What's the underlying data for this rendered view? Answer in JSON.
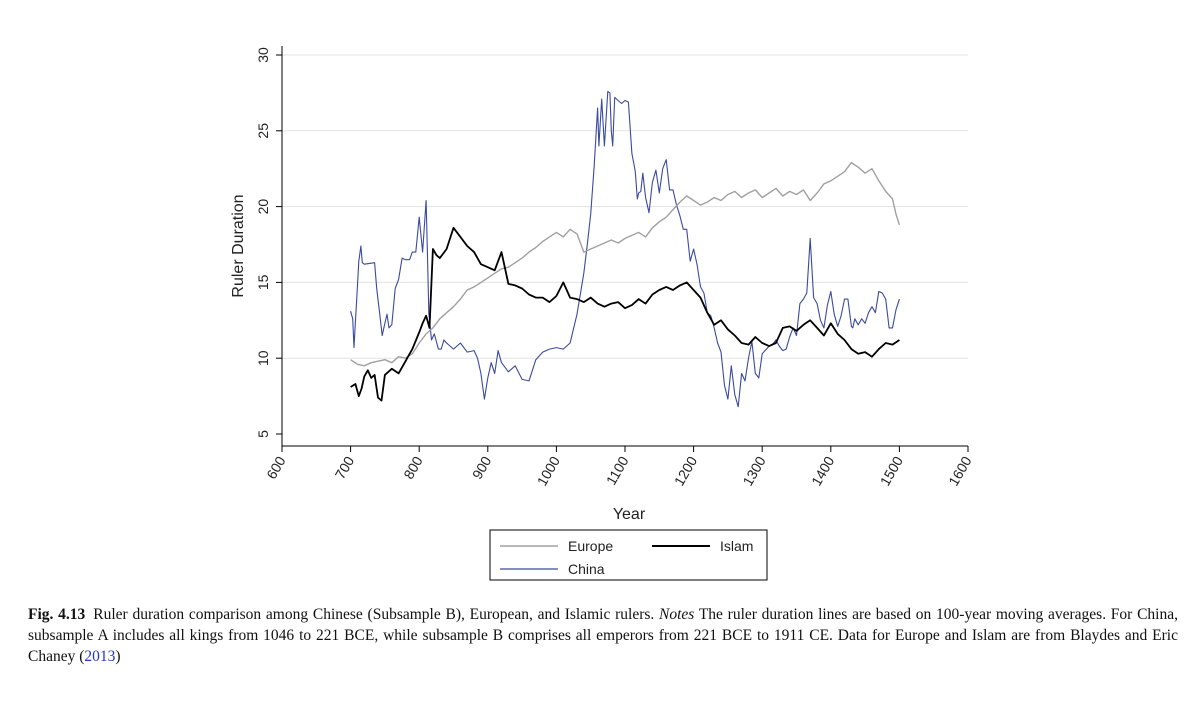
{
  "chart_data": {
    "type": "line",
    "xlabel": "Year",
    "ylabel": "Ruler Duration",
    "xlim": [
      600,
      1600
    ],
    "ylim": [
      5,
      30
    ],
    "xticks": [
      600,
      700,
      800,
      900,
      1000,
      1100,
      1200,
      1300,
      1400,
      1500,
      1600
    ],
    "yticks": [
      5,
      10,
      15,
      20,
      25,
      30
    ],
    "grid": true,
    "legend_position": "bottom",
    "series": [
      {
        "name": "Europe",
        "color": "#a0a0a0",
        "x": [
          700,
          710,
          720,
          730,
          740,
          750,
          760,
          770,
          780,
          790,
          800,
          810,
          820,
          830,
          840,
          850,
          860,
          870,
          880,
          890,
          900,
          910,
          920,
          930,
          940,
          950,
          960,
          970,
          980,
          990,
          1000,
          1010,
          1020,
          1030,
          1040,
          1050,
          1060,
          1070,
          1080,
          1090,
          1100,
          1110,
          1120,
          1130,
          1140,
          1150,
          1160,
          1170,
          1180,
          1190,
          1200,
          1210,
          1220,
          1230,
          1240,
          1250,
          1260,
          1270,
          1280,
          1290,
          1300,
          1310,
          1320,
          1330,
          1340,
          1350,
          1360,
          1370,
          1380,
          1390,
          1400,
          1410,
          1420,
          1430,
          1440,
          1450,
          1460,
          1470,
          1480,
          1490,
          1495,
          1500
        ],
        "values": [
          9.9,
          9.6,
          9.5,
          9.7,
          9.8,
          9.9,
          9.7,
          10.1,
          10.0,
          10.3,
          11.0,
          11.6,
          12.0,
          12.6,
          13.0,
          13.4,
          13.9,
          14.5,
          14.7,
          15.0,
          15.3,
          15.6,
          15.9,
          16.0,
          16.3,
          16.6,
          17.0,
          17.3,
          17.7,
          18.0,
          18.3,
          18.0,
          18.5,
          18.2,
          17.0,
          17.2,
          17.4,
          17.6,
          17.8,
          17.6,
          17.9,
          18.1,
          18.3,
          18.0,
          18.6,
          19.0,
          19.3,
          19.8,
          20.3,
          20.7,
          20.4,
          20.1,
          20.3,
          20.6,
          20.4,
          20.8,
          21.0,
          20.6,
          20.9,
          21.1,
          20.6,
          20.9,
          21.2,
          20.7,
          21.0,
          20.8,
          21.1,
          20.4,
          20.9,
          21.5,
          21.7,
          22.0,
          22.3,
          22.9,
          22.6,
          22.2,
          22.5,
          21.7,
          21.0,
          20.5,
          19.5,
          18.8
        ]
      },
      {
        "name": "Islam",
        "color": "#000000",
        "x": [
          700,
          707,
          712,
          716,
          720,
          725,
          730,
          735,
          740,
          745,
          750,
          760,
          770,
          780,
          790,
          800,
          805,
          810,
          815,
          820,
          825,
          830,
          840,
          850,
          860,
          870,
          880,
          890,
          900,
          910,
          920,
          930,
          940,
          950,
          960,
          970,
          980,
          990,
          1000,
          1010,
          1020,
          1030,
          1040,
          1050,
          1060,
          1070,
          1080,
          1090,
          1100,
          1110,
          1120,
          1130,
          1140,
          1150,
          1160,
          1170,
          1180,
          1190,
          1200,
          1210,
          1220,
          1230,
          1240,
          1250,
          1260,
          1270,
          1280,
          1290,
          1300,
          1310,
          1320,
          1330,
          1340,
          1350,
          1360,
          1370,
          1380,
          1390,
          1400,
          1410,
          1420,
          1430,
          1440,
          1450,
          1460,
          1470,
          1480,
          1490,
          1500
        ],
        "values": [
          8.1,
          8.3,
          7.5,
          8.0,
          8.8,
          9.2,
          8.7,
          8.9,
          7.4,
          7.2,
          8.9,
          9.3,
          9.0,
          9.8,
          10.6,
          11.7,
          12.3,
          12.8,
          12.0,
          17.2,
          16.8,
          16.6,
          17.2,
          18.6,
          18.0,
          17.4,
          17.0,
          16.2,
          16.0,
          15.8,
          17.0,
          14.9,
          14.8,
          14.6,
          14.2,
          14.0,
          14.0,
          13.7,
          14.1,
          15.0,
          14.0,
          13.9,
          13.7,
          14.0,
          13.6,
          13.4,
          13.6,
          13.7,
          13.3,
          13.5,
          13.9,
          13.6,
          14.2,
          14.5,
          14.7,
          14.5,
          14.8,
          15.0,
          14.5,
          14.0,
          13.0,
          12.2,
          12.5,
          11.9,
          11.5,
          11.0,
          10.9,
          11.4,
          11.0,
          10.8,
          11.0,
          12.0,
          12.1,
          11.8,
          12.2,
          12.5,
          12.0,
          11.5,
          12.3,
          11.6,
          11.2,
          10.6,
          10.3,
          10.4,
          10.1,
          10.6,
          11.0,
          10.9,
          11.2
        ]
      },
      {
        "name": "China",
        "color": "#3a4aa0",
        "x": [
          700,
          703,
          705,
          707,
          709,
          712,
          715,
          717,
          720,
          735,
          738,
          742,
          746,
          750,
          753,
          756,
          760,
          765,
          770,
          775,
          780,
          786,
          790,
          795,
          800,
          805,
          810,
          812,
          814,
          818,
          822,
          828,
          832,
          836,
          840,
          850,
          860,
          870,
          880,
          885,
          890,
          895,
          900,
          905,
          910,
          915,
          920,
          930,
          940,
          950,
          960,
          970,
          980,
          990,
          1000,
          1010,
          1020,
          1030,
          1040,
          1045,
          1050,
          1055,
          1060,
          1062,
          1066,
          1070,
          1075,
          1078,
          1080,
          1082,
          1085,
          1090,
          1095,
          1100,
          1105,
          1110,
          1115,
          1118,
          1120,
          1123,
          1126,
          1130,
          1135,
          1140,
          1145,
          1150,
          1155,
          1160,
          1165,
          1170,
          1175,
          1180,
          1185,
          1190,
          1195,
          1200,
          1205,
          1210,
          1215,
          1220,
          1225,
          1230,
          1235,
          1240,
          1245,
          1250,
          1255,
          1260,
          1265,
          1270,
          1275,
          1280,
          1285,
          1290,
          1295,
          1300,
          1310,
          1315,
          1320,
          1325,
          1330,
          1335,
          1340,
          1345,
          1350,
          1355,
          1360,
          1365,
          1370,
          1375,
          1380,
          1385,
          1390,
          1395,
          1400,
          1405,
          1410,
          1415,
          1420,
          1425,
          1430,
          1432,
          1435,
          1440,
          1445,
          1450,
          1455,
          1460,
          1465,
          1470,
          1475,
          1480,
          1485,
          1490,
          1495,
          1500
        ],
        "values": [
          13.1,
          12.6,
          10.7,
          12.4,
          14.0,
          16.4,
          17.4,
          16.3,
          16.2,
          16.3,
          14.6,
          13.1,
          11.5,
          12.3,
          12.9,
          12.0,
          12.2,
          14.6,
          15.2,
          16.6,
          16.5,
          16.5,
          17.0,
          17.0,
          19.3,
          17.0,
          20.4,
          17.0,
          13.0,
          11.2,
          11.6,
          10.6,
          10.6,
          11.2,
          11.0,
          10.6,
          11.0,
          10.4,
          10.5,
          10.0,
          9.0,
          7.3,
          8.7,
          9.7,
          9.0,
          10.5,
          9.7,
          9.1,
          9.5,
          8.6,
          8.5,
          9.9,
          10.4,
          10.6,
          10.7,
          10.6,
          11.0,
          12.9,
          15.6,
          17.5,
          19.5,
          22.6,
          26.5,
          24.0,
          27.1,
          24.0,
          27.6,
          27.5,
          25.0,
          24.0,
          27.2,
          27.0,
          26.8,
          27.0,
          26.9,
          23.5,
          22.3,
          20.5,
          20.9,
          21.0,
          22.2,
          20.6,
          19.6,
          21.6,
          22.4,
          20.9,
          22.5,
          23.1,
          21.1,
          21.1,
          20.1,
          19.4,
          18.5,
          18.5,
          16.4,
          17.2,
          16.2,
          14.7,
          14.3,
          13.0,
          12.8,
          12.0,
          11.0,
          10.4,
          8.2,
          7.3,
          9.5,
          7.6,
          6.8,
          9.0,
          8.5,
          10.0,
          11.1,
          9.0,
          8.7,
          10.3,
          10.8,
          10.9,
          11.2,
          10.8,
          10.5,
          10.6,
          11.4,
          12.0,
          11.5,
          13.6,
          13.9,
          14.3,
          17.9,
          14.0,
          13.6,
          12.5,
          12.0,
          13.5,
          14.4,
          12.9,
          12.1,
          12.8,
          13.9,
          13.9,
          12.1,
          12.0,
          12.6,
          12.2,
          12.6,
          12.3,
          13.0,
          13.4,
          13.0,
          14.4,
          14.3,
          13.9,
          12.0,
          12.0,
          13.2,
          13.9
        ]
      }
    ]
  },
  "caption": {
    "label": "Fig. 4.13",
    "text_1": "Ruler duration comparison among Chinese (Subsample B), European, and Islamic rulers.",
    "notes_label": "Notes",
    "text_2": "The ruler duration lines are based on 100-year moving averages. For China, subsample A includes all kings from 1046 to 221 BCE, while subsample B comprises all emperors from 221 BCE to 1911 CE. Data for Europe and Islam are from Blaydes and Eric Chaney (",
    "citation_year": "2013",
    "text_3": ")"
  }
}
